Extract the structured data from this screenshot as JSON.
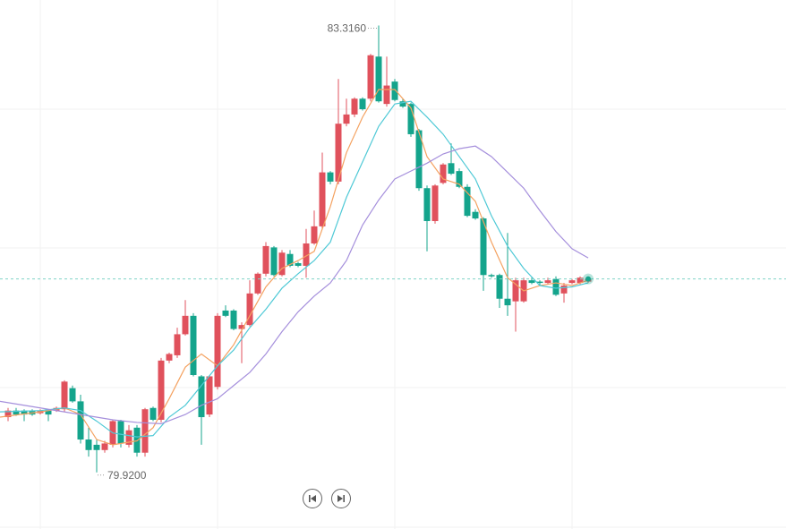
{
  "chart_data": {
    "type": "candlestick",
    "up_color": "#e0515c",
    "down_color": "#14a48c",
    "ylim": [
      79.49,
      83.51
    ],
    "open": [
      80.34,
      80.39,
      80.39,
      80.39,
      80.37,
      80.39,
      80.39,
      80.4,
      80.56,
      80.46,
      80.17,
      80.13,
      80.09,
      80.13,
      80.31,
      80.13,
      80.26,
      80.07,
      80.41,
      80.32,
      80.77,
      80.81,
      80.97,
      81.11,
      80.65,
      80.36,
      80.57,
      81.15,
      81.15,
      81.01,
      81.04,
      81.28,
      81.43,
      81.63,
      81.42,
      81.58,
      81.51,
      81.49,
      81.66,
      81.79,
      82.2,
      82.13,
      82.57,
      82.64,
      82.76,
      82.76,
      83.08,
      82.72,
      82.89,
      82.74,
      82.72,
      82.52,
      82.08,
      81.83,
      82.12,
      82.27,
      82.21,
      82.09,
      81.9,
      81.85,
      81.42,
      81.42,
      81.24,
      81.22,
      81.22,
      81.38,
      81.37,
      81.36,
      81.39,
      81.28,
      81.36,
      81.36,
      81.37
    ],
    "high": [
      80.41,
      80.41,
      80.4,
      80.4,
      80.4,
      80.4,
      80.42,
      80.62,
      80.58,
      80.51,
      80.26,
      80.17,
      80.16,
      80.32,
      80.32,
      80.28,
      80.28,
      80.41,
      80.42,
      80.79,
      80.83,
      81.02,
      81.23,
      81.13,
      80.66,
      80.66,
      81.13,
      81.19,
      81.16,
      81.06,
      81.38,
      81.44,
      81.67,
      81.64,
      81.61,
      81.61,
      81.52,
      81.77,
      81.91,
      82.35,
      82.21,
      82.91,
      82.76,
      82.77,
      82.77,
      83.1,
      83.316,
      83.08,
      82.91,
      82.76,
      82.73,
      82.53,
      82.1,
      82.11,
      82.27,
      82.42,
      82.23,
      82.11,
      81.92,
      81.86,
      81.43,
      81.43,
      81.74,
      81.4,
      81.4,
      81.4,
      81.38,
      81.4,
      81.41,
      81.36,
      81.39,
      81.41,
      81.4
    ],
    "low": [
      80.31,
      80.35,
      80.31,
      80.35,
      80.36,
      80.31,
      80.38,
      80.38,
      80.45,
      80.14,
      80.04,
      79.92,
      80.07,
      80.11,
      80.11,
      80.11,
      80.04,
      80.04,
      80.31,
      80.3,
      80.75,
      80.79,
      80.96,
      80.65,
      80.13,
      80.34,
      80.55,
      81.1,
      81.0,
      80.75,
      81.03,
      81.27,
      81.41,
      81.41,
      81.41,
      81.48,
      81.48,
      81.4,
      81.65,
      81.77,
      82.11,
      82.11,
      82.55,
      82.62,
      82.67,
      82.74,
      82.73,
      82.7,
      82.74,
      82.69,
      82.47,
      82.06,
      81.6,
      81.81,
      82.11,
      82.18,
      82.08,
      81.86,
      81.84,
      81.3,
      81.4,
      81.17,
      81.11,
      80.99,
      81.21,
      81.35,
      81.34,
      81.35,
      81.26,
      81.21,
      81.35,
      81.35,
      81.36
    ],
    "close": [
      80.39,
      80.36,
      80.36,
      80.36,
      80.39,
      80.36,
      80.41,
      80.61,
      80.46,
      80.17,
      80.09,
      80.09,
      80.14,
      80.31,
      80.14,
      80.24,
      80.07,
      80.4,
      80.32,
      80.77,
      80.82,
      80.97,
      81.11,
      80.66,
      80.34,
      80.65,
      81.11,
      81.11,
      81.01,
      81.04,
      81.28,
      81.43,
      81.64,
      81.42,
      81.59,
      81.49,
      81.49,
      81.66,
      81.79,
      82.2,
      82.13,
      82.57,
      82.64,
      82.76,
      82.68,
      83.09,
      82.74,
      82.86,
      82.75,
      82.7,
      82.49,
      82.08,
      81.83,
      82.1,
      82.26,
      82.19,
      82.09,
      81.87,
      81.85,
      81.42,
      81.41,
      81.24,
      81.19,
      81.38,
      81.38,
      81.36,
      81.36,
      81.38,
      81.27,
      81.34,
      81.38,
      81.4,
      81.39
    ],
    "series": [
      {
        "color": "#f4a261",
        "x": [
          -1,
          4,
          7,
          9,
          11,
          13,
          16,
          18,
          20,
          22,
          24,
          26,
          28,
          30,
          32,
          34,
          36,
          38,
          40,
          42,
          44,
          46,
          48,
          50,
          52,
          54,
          56,
          58,
          60,
          62,
          64,
          66,
          68,
          70,
          72
        ],
        "values": [
          80.34,
          80.38,
          80.41,
          80.36,
          80.17,
          80.13,
          80.16,
          80.26,
          80.48,
          80.72,
          80.82,
          80.73,
          80.89,
          81.11,
          81.33,
          81.47,
          81.53,
          81.6,
          81.94,
          82.35,
          82.62,
          82.83,
          82.83,
          82.69,
          82.32,
          82.15,
          82.11,
          81.98,
          81.67,
          81.4,
          81.3,
          81.34,
          81.36,
          81.34,
          81.38
        ]
      },
      {
        "color": "#4fc9d6",
        "x": [
          -1,
          4,
          7,
          9,
          11,
          13,
          16,
          18,
          20,
          22,
          24,
          26,
          28,
          30,
          32,
          34,
          36,
          38,
          40,
          42,
          44,
          46,
          48,
          50,
          52,
          54,
          56,
          58,
          60,
          62,
          64,
          66,
          68,
          70,
          72
        ],
        "values": [
          80.38,
          80.39,
          80.41,
          80.39,
          80.31,
          80.22,
          80.19,
          80.2,
          80.34,
          80.43,
          80.58,
          80.73,
          80.85,
          81.02,
          81.16,
          81.32,
          81.43,
          81.53,
          81.67,
          82.01,
          82.28,
          82.55,
          82.72,
          82.74,
          82.62,
          82.49,
          82.32,
          82.15,
          81.87,
          81.64,
          81.47,
          81.34,
          81.32,
          81.33,
          81.36
        ]
      },
      {
        "color": "#a58fdc",
        "x": [
          -1,
          4,
          9,
          13,
          16,
          19,
          22,
          24,
          26,
          28,
          30,
          32,
          34,
          36,
          38,
          40,
          42,
          44,
          46,
          48,
          50,
          52,
          54,
          56,
          58,
          60,
          62,
          64,
          66,
          68,
          70,
          72
        ],
        "values": [
          80.46,
          80.41,
          80.36,
          80.32,
          80.3,
          80.29,
          80.36,
          80.43,
          80.48,
          80.58,
          80.68,
          80.82,
          80.99,
          81.14,
          81.26,
          81.36,
          81.53,
          81.8,
          81.99,
          82.15,
          82.21,
          82.27,
          82.34,
          82.38,
          82.4,
          82.32,
          82.2,
          82.08,
          81.91,
          81.75,
          81.62,
          81.55
        ]
      }
    ],
    "last_price_line": true,
    "annotations": [
      {
        "label": "83.3160",
        "x": 46,
        "value": 83.316
      },
      {
        "label": "79.9200",
        "x": 11,
        "value": 79.92
      }
    ]
  }
}
